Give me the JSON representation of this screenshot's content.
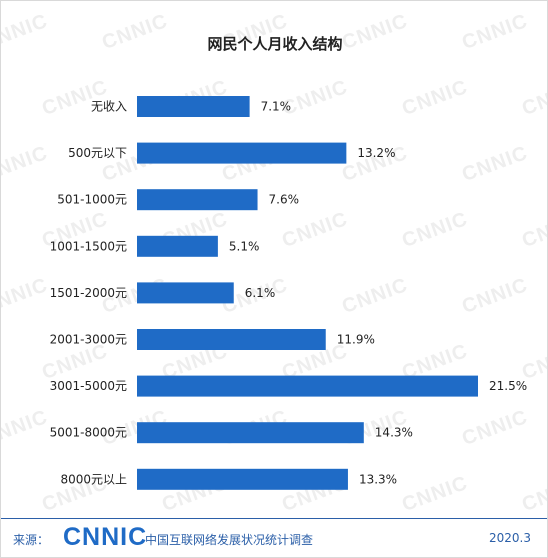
{
  "chart_data": {
    "type": "bar",
    "orientation": "horizontal",
    "title": "网民个人月收入结构",
    "categories": [
      "无收入",
      "500元以下",
      "501-1000元",
      "1001-1500元",
      "1501-2000元",
      "2001-3000元",
      "3001-5000元",
      "5001-8000元",
      "8000元以上"
    ],
    "values": [
      7.1,
      13.2,
      7.6,
      5.1,
      6.1,
      11.9,
      21.5,
      14.3,
      13.3
    ],
    "value_labels": [
      "7.1%",
      "13.2%",
      "7.6%",
      "5.1%",
      "6.1%",
      "11.9%",
      "21.5%",
      "14.3%",
      "13.3%"
    ],
    "unit": "%",
    "xlim": [
      0,
      21.5
    ],
    "bar_color": "#1f6bc6",
    "grid": false,
    "legend": "none"
  },
  "watermark": {
    "text": "CNNIC"
  },
  "footer": {
    "source_label": "来源：",
    "logo": "CNNIC",
    "org_name": "中国互联网络发展状况统计调查",
    "date": "2020.3"
  },
  "colors": {
    "accent": "#2b5fa8",
    "bar": "#1f6bc6"
  }
}
